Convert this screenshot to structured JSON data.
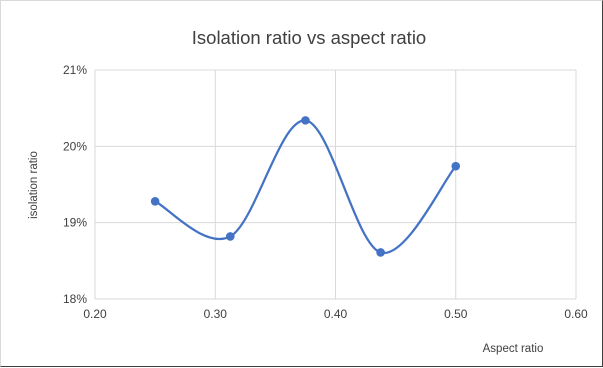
{
  "chart_data": {
    "type": "scatter",
    "title": "Isolation ratio vs aspect ratio",
    "xlabel": "Aspect ratio",
    "ylabel": "isolation ratio",
    "xlim": [
      0.2,
      0.6
    ],
    "ylim": [
      0.18,
      0.21
    ],
    "x_ticks": [
      0.2,
      0.3,
      0.4,
      0.5,
      0.6
    ],
    "x_tick_labels": [
      "0.20",
      "0.30",
      "0.40",
      "0.50",
      "0.60"
    ],
    "y_ticks": [
      0.18,
      0.19,
      0.2,
      0.21
    ],
    "y_tick_labels": [
      "18%",
      "19%",
      "20%",
      "21%"
    ],
    "grid": true,
    "smooth_line": true,
    "series": [
      {
        "color": "#4472c4",
        "x": [
          0.25,
          0.3125,
          0.375,
          0.4375,
          0.5
        ],
        "y": [
          0.1928,
          0.1882,
          0.2034,
          0.1861,
          0.1974
        ]
      }
    ]
  }
}
